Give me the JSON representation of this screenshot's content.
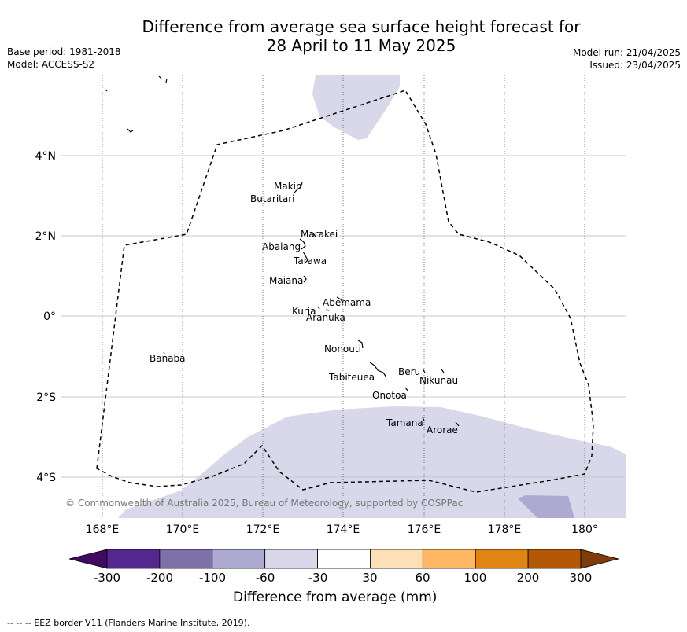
{
  "title_line1": "Difference from average sea surface height forecast for",
  "title_line2": "28 April to 11 May 2025",
  "base_period": "Base period: 1981-2018",
  "model": "Model: ACCESS-S2",
  "model_run": "Model run: 21/04/2025",
  "issued": "Issued: 23/04/2025",
  "copyright": "© Commonwealth of Australia 2025, Bureau of Meteorology, supported by COSPPac",
  "lon_ticks": [
    "168°E",
    "170°E",
    "172°E",
    "174°E",
    "176°E",
    "178°E",
    "180°"
  ],
  "lat_ticks": [
    "4°N",
    "2°N",
    "0°",
    "2°S",
    "4°S"
  ],
  "islands": [
    {
      "name": "Makin"
    },
    {
      "name": "Butaritari"
    },
    {
      "name": "Marakei"
    },
    {
      "name": "Abaiang"
    },
    {
      "name": "Tarawa"
    },
    {
      "name": "Maiana"
    },
    {
      "name": "Abemama"
    },
    {
      "name": "Kuria"
    },
    {
      "name": "Aranuka"
    },
    {
      "name": "Nonouti"
    },
    {
      "name": "Banaba"
    },
    {
      "name": "Beru"
    },
    {
      "name": "Tabiteuea"
    },
    {
      "name": "Nikunau"
    },
    {
      "name": "Onotoa"
    },
    {
      "name": "Tamana"
    },
    {
      "name": "Arorae"
    }
  ],
  "colorbar": {
    "title": "Difference from average (mm)",
    "ticks": [
      "-300",
      "-200",
      "-100",
      "-60",
      "-30",
      "30",
      "60",
      "100",
      "200",
      "300"
    ],
    "colors": {
      "under": "#3f0a5f",
      "bins": [
        "#54278f",
        "#7e70a8",
        "#adaad2",
        "#d8d8ea",
        "#ffffff",
        "#fee0b6",
        "#fdb762",
        "#e08413",
        "#b35806"
      ],
      "over": "#7f3b08"
    }
  },
  "footnote": "--  --  -- EEZ border V11 (Flanders Marine Institute, 2019)."
}
